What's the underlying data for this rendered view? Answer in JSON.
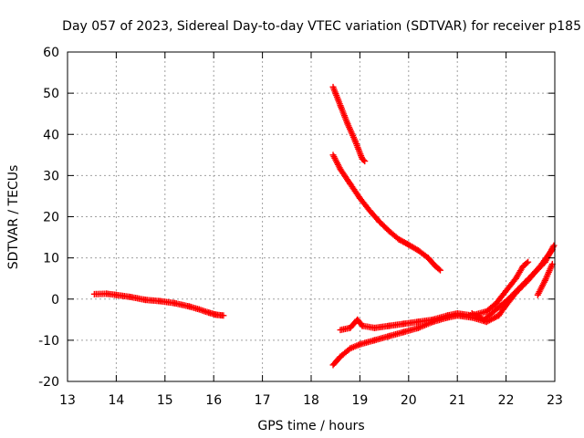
{
  "chart_data": {
    "type": "scatter",
    "title": "Day 057 of 2023, Sidereal Day-to-day VTEC variation (SDTVAR) for receiver p185",
    "xlabel": "GPS time / hours",
    "ylabel": "SDTVAR / TECUs",
    "xlim": [
      13,
      23
    ],
    "ylim": [
      -20,
      60
    ],
    "xticks": [
      13,
      14,
      15,
      16,
      17,
      18,
      19,
      20,
      21,
      22,
      23
    ],
    "yticks": [
      -20,
      -10,
      0,
      10,
      20,
      30,
      40,
      50,
      60
    ],
    "grid": true,
    "series": [
      {
        "color": "#ff0000",
        "marker": "plus",
        "segments": [
          [
            [
              13.55,
              1.2
            ],
            [
              13.8,
              1.3
            ],
            [
              14.0,
              1.0
            ],
            [
              14.3,
              0.5
            ],
            [
              14.6,
              -0.2
            ],
            [
              14.9,
              -0.5
            ],
            [
              15.2,
              -1.0
            ],
            [
              15.5,
              -1.8
            ],
            [
              15.7,
              -2.5
            ],
            [
              15.9,
              -3.3
            ],
            [
              16.05,
              -3.8
            ],
            [
              16.2,
              -4.0
            ]
          ],
          [
            [
              18.45,
              51.5
            ],
            [
              18.6,
              47.0
            ],
            [
              18.75,
              42.5
            ],
            [
              18.9,
              38.5
            ],
            [
              19.05,
              34.0
            ],
            [
              19.1,
              33.5
            ]
          ],
          [
            [
              18.45,
              35.0
            ],
            [
              18.6,
              31.5
            ],
            [
              18.8,
              28.0
            ],
            [
              19.0,
              24.5
            ],
            [
              19.2,
              21.5
            ],
            [
              19.4,
              18.8
            ],
            [
              19.6,
              16.5
            ],
            [
              19.8,
              14.5
            ],
            [
              20.0,
              13.2
            ],
            [
              20.2,
              11.8
            ],
            [
              20.4,
              10.0
            ],
            [
              20.55,
              8.0
            ],
            [
              20.65,
              7.0
            ]
          ],
          [
            [
              18.45,
              -16.0
            ],
            [
              18.6,
              -14.0
            ],
            [
              18.8,
              -12.0
            ],
            [
              19.0,
              -11.0
            ],
            [
              19.3,
              -10.0
            ],
            [
              19.6,
              -9.0
            ],
            [
              19.9,
              -8.0
            ],
            [
              20.2,
              -7.0
            ],
            [
              20.5,
              -5.5
            ],
            [
              20.8,
              -4.5
            ],
            [
              21.0,
              -4.0
            ],
            [
              21.3,
              -4.5
            ],
            [
              21.6,
              -5.5
            ],
            [
              21.85,
              -4.0
            ],
            [
              22.0,
              -1.5
            ],
            [
              22.2,
              1.5
            ],
            [
              22.45,
              4.5
            ],
            [
              22.7,
              8.0
            ],
            [
              22.95,
              12.0
            ]
          ],
          [
            [
              18.6,
              -7.5
            ],
            [
              18.8,
              -7.0
            ],
            [
              18.95,
              -5.0
            ],
            [
              19.05,
              -6.5
            ],
            [
              19.3,
              -7.0
            ],
            [
              19.6,
              -6.5
            ],
            [
              19.9,
              -6.0
            ],
            [
              20.2,
              -5.5
            ],
            [
              20.5,
              -5.0
            ],
            [
              20.8,
              -4.0
            ],
            [
              21.0,
              -3.5
            ],
            [
              21.3,
              -4.0
            ],
            [
              21.6,
              -3.0
            ],
            [
              21.8,
              -1.0
            ],
            [
              22.0,
              2.0
            ],
            [
              22.2,
              5.0
            ],
            [
              22.35,
              8.0
            ],
            [
              22.45,
              9.0
            ]
          ],
          [
            [
              21.3,
              -3.5
            ],
            [
              21.55,
              -5.0
            ],
            [
              21.8,
              -2.5
            ],
            [
              22.05,
              0.0
            ],
            [
              22.3,
              3.0
            ],
            [
              22.55,
              6.0
            ],
            [
              22.8,
              9.0
            ],
            [
              22.98,
              13.0
            ]
          ],
          [
            [
              22.65,
              1.0
            ],
            [
              22.8,
              4.5
            ],
            [
              22.95,
              8.5
            ]
          ]
        ]
      }
    ]
  }
}
